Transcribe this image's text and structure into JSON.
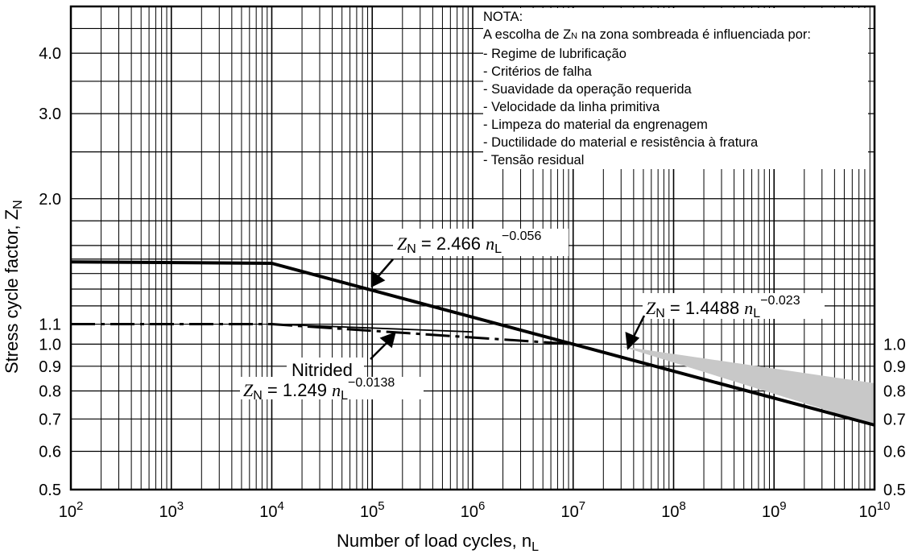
{
  "chart_data": {
    "type": "line",
    "x_scale": "log",
    "y_scale": "log",
    "xlim": [
      100,
      10000000000
    ],
    "ylim": [
      0.5,
      5.0
    ],
    "xlabel": "Number of load cycles, n",
    "xlabel_sub": "L",
    "ylabel": "Stress cycle factor, Z",
    "ylabel_sub": "N",
    "grid": true,
    "x_ticks": [
      {
        "value": 100,
        "base": "10",
        "exp": "2"
      },
      {
        "value": 1000,
        "base": "10",
        "exp": "3"
      },
      {
        "value": 10000,
        "base": "10",
        "exp": "4"
      },
      {
        "value": 100000,
        "base": "10",
        "exp": "5"
      },
      {
        "value": 1000000,
        "base": "10",
        "exp": "6"
      },
      {
        "value": 10000000,
        "base": "10",
        "exp": "7"
      },
      {
        "value": 100000000,
        "base": "10",
        "exp": "8"
      },
      {
        "value": 1000000000,
        "base": "10",
        "exp": "9"
      },
      {
        "value": 10000000000,
        "base": "10",
        "exp": "10"
      }
    ],
    "y_ticks_left": [
      {
        "value": 4.0,
        "label": "4.0"
      },
      {
        "value": 3.0,
        "label": "3.0"
      },
      {
        "value": 2.0,
        "label": "2.0"
      },
      {
        "value": 1.1,
        "label": "1.1"
      },
      {
        "value": 1.0,
        "label": "1.0"
      },
      {
        "value": 0.9,
        "label": "0.9"
      },
      {
        "value": 0.8,
        "label": "0.8"
      },
      {
        "value": 0.7,
        "label": "0.7"
      },
      {
        "value": 0.6,
        "label": "0.6"
      },
      {
        "value": 0.5,
        "label": "0.5"
      }
    ],
    "y_ticks_right": [
      {
        "value": 1.0,
        "label": "1.0"
      },
      {
        "value": 0.9,
        "label": "0.9"
      },
      {
        "value": 0.8,
        "label": "0.8"
      },
      {
        "value": 0.7,
        "label": "0.7"
      },
      {
        "value": 0.6,
        "label": "0.6"
      },
      {
        "value": 0.5,
        "label": "0.5"
      }
    ],
    "series": [
      {
        "style": "solid",
        "points": [
          [
            100,
            1.48
          ],
          [
            10000,
            1.47
          ],
          [
            10000000000,
            0.68
          ]
        ]
      },
      {
        "style": "dashdot",
        "points": [
          [
            100,
            1.1
          ],
          [
            10000,
            1.1
          ],
          [
            10000000,
            1.0
          ]
        ]
      },
      {
        "style": "solid-thin",
        "points": [
          [
            10000,
            1.1
          ],
          [
            1000000,
            1.06
          ]
        ]
      }
    ],
    "shaded_region": {
      "color": "#c8c8c8",
      "points": [
        [
          30000000,
          0.99
        ],
        [
          10000000000,
          0.83
        ],
        [
          10000000000,
          0.68
        ]
      ]
    },
    "annotations": [
      {
        "zn": "Z",
        "zn_sub": "N",
        "eq": " = 2.466 ",
        "n": "n",
        "n_sub": "L",
        "exp": "−0.056"
      },
      {
        "zn": "Z",
        "zn_sub": "N",
        "eq": " = 1.4488 ",
        "n": "n",
        "n_sub": "L",
        "exp": "−0.023"
      },
      {
        "zn": "Z",
        "zn_sub": "N",
        "eq": " = 1.249 ",
        "n": "n",
        "n_sub": "L",
        "exp": "−0.0138"
      }
    ],
    "nitrided_label": "Nitrided",
    "note": {
      "title": "NOTA:",
      "intro": "A escolha de Z",
      "intro_sub": "N",
      "intro_rest": " na zona sombreada é influenciada por:",
      "items": [
        "- Regime de lubrificação",
        "- Critérios de falha",
        "- Suavidade da operação requerida",
        "- Velocidade da linha primitiva",
        "- Limpeza do material da engrenagem",
        "- Ductilidade do material e resistência à fratura",
        "- Tensão residual"
      ]
    }
  }
}
